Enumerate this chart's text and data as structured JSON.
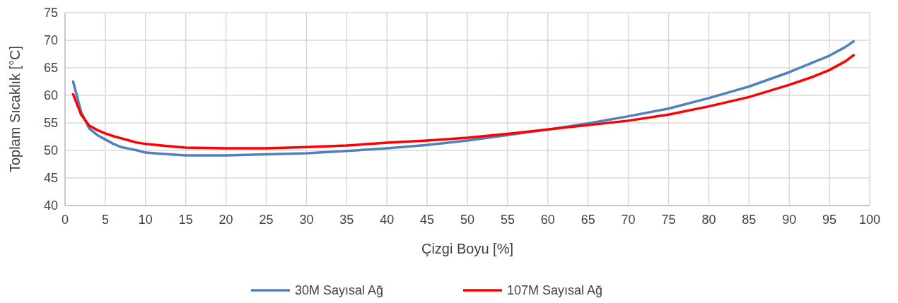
{
  "chart_data": {
    "type": "line",
    "xlabel": "Çizgi Boyu [%]",
    "ylabel": "Toplam Sıcaklık [°C]",
    "xlim": [
      0,
      100
    ],
    "xticks": [
      0,
      5,
      10,
      15,
      20,
      25,
      30,
      35,
      40,
      45,
      50,
      55,
      60,
      65,
      70,
      75,
      80,
      85,
      90,
      95,
      100
    ],
    "ylim": [
      40,
      75
    ],
    "yticks": [
      40,
      45,
      50,
      55,
      60,
      65,
      70,
      75
    ],
    "grid": true,
    "legend": "bottom",
    "line_style": "solid",
    "marker": "none",
    "x": [
      1,
      2,
      3,
      4,
      5,
      6,
      7,
      8,
      9,
      10,
      12,
      15,
      20,
      25,
      30,
      35,
      40,
      45,
      50,
      55,
      60,
      65,
      70,
      75,
      80,
      85,
      90,
      93,
      95,
      97,
      98
    ],
    "series": [
      {
        "name": "30M Sayısal Ağ",
        "color": "#4f81bd",
        "values": [
          62.5,
          57,
          54,
          52.8,
          52,
          51.2,
          50.6,
          50.3,
          50,
          49.6,
          49.4,
          49.1,
          49.1,
          49.3,
          49.5,
          49.9,
          50.4,
          51,
          51.8,
          52.8,
          53.8,
          54.9,
          56.2,
          57.6,
          59.5,
          61.6,
          64.2,
          66,
          67.2,
          68.8,
          69.8
        ]
      },
      {
        "name": "107M Sayısal Ağ",
        "color": "#ff0000",
        "values": [
          60.2,
          56.5,
          54.5,
          53.7,
          53.1,
          52.6,
          52.2,
          51.8,
          51.4,
          51.2,
          50.9,
          50.5,
          50.4,
          50.4,
          50.6,
          50.9,
          51.4,
          51.8,
          52.3,
          53,
          53.8,
          54.6,
          55.4,
          56.5,
          58,
          59.7,
          61.9,
          63.4,
          64.6,
          66.2,
          67.3
        ]
      }
    ]
  }
}
